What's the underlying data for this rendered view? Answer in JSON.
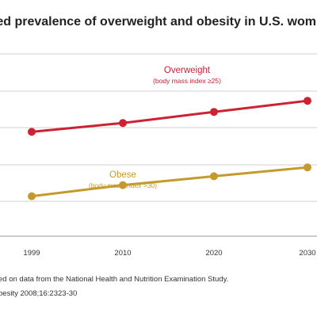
{
  "chart_data": {
    "type": "line",
    "title": "ted prevalence of overweight and obesity in U.S. wom",
    "categories": [
      "1999",
      "2010",
      "2020",
      "2030"
    ],
    "ylim": [
      0,
      100
    ],
    "grid": true,
    "series": [
      {
        "name": "Overweight",
        "annotation": "(body mass index ≥25)",
        "color": "#cc2233",
        "values": [
          47,
          51,
          56,
          61
        ]
      },
      {
        "name": "Obese",
        "annotation": "(body mass index >30)",
        "color": "#c49a2c",
        "values": [
          18,
          23,
          27,
          31
        ]
      }
    ]
  },
  "notes": [
    "ed on data from the National Health and Nutrition Examination Study.",
    "besity 2008;16:2323-30"
  ]
}
